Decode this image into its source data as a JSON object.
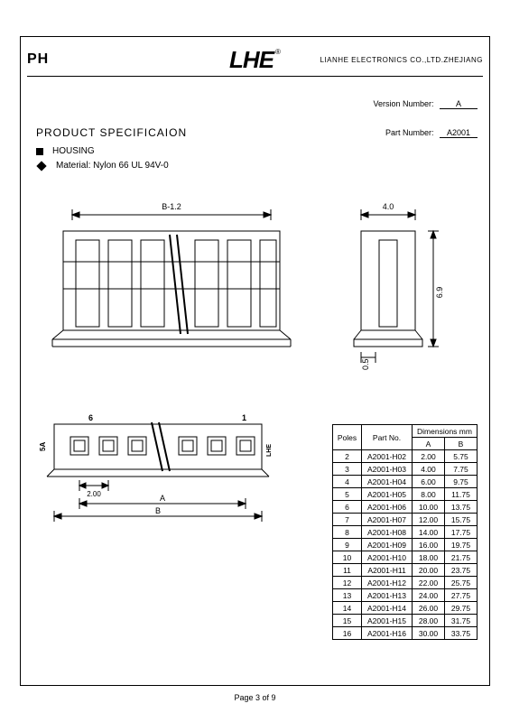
{
  "header": {
    "left": "PH",
    "logo": "LHE",
    "reg": "®",
    "company": "LIANHE ELECTRONICS CO.,LTD.ZHEJIANG"
  },
  "meta": {
    "version_label": "Version Number:",
    "version_value": "A",
    "part_label": "Part Number:",
    "part_value": "A2001"
  },
  "title": "PRODUCT SPECIFICAION",
  "spec": {
    "housing": "HOUSING",
    "material": "Material: Nylon 66 UL 94V-0"
  },
  "dimensions": {
    "front_width": "B-1.2",
    "side_width": "4.0",
    "side_height": "6.9",
    "side_offset": "0.5",
    "pitch": "2.00",
    "dim_a": "A",
    "dim_b": "B",
    "pin6": "6",
    "pin1": "1",
    "mark_5a": "5A",
    "mark_lhe": "LHE"
  },
  "table": {
    "headers": {
      "poles": "Poles",
      "partno": "Part No.",
      "dimensions": "Dimensions mm",
      "a": "A",
      "b": "B"
    },
    "rows": [
      {
        "poles": "2",
        "part": "A2001-H02",
        "a": "2.00",
        "b": "5.75"
      },
      {
        "poles": "3",
        "part": "A2001-H03",
        "a": "4.00",
        "b": "7.75"
      },
      {
        "poles": "4",
        "part": "A2001-H04",
        "a": "6.00",
        "b": "9.75"
      },
      {
        "poles": "5",
        "part": "A2001-H05",
        "a": "8.00",
        "b": "11.75"
      },
      {
        "poles": "6",
        "part": "A2001-H06",
        "a": "10.00",
        "b": "13.75"
      },
      {
        "poles": "7",
        "part": "A2001-H07",
        "a": "12.00",
        "b": "15.75"
      },
      {
        "poles": "8",
        "part": "A2001-H08",
        "a": "14.00",
        "b": "17.75"
      },
      {
        "poles": "9",
        "part": "A2001-H09",
        "a": "16.00",
        "b": "19.75"
      },
      {
        "poles": "10",
        "part": "A2001-H10",
        "a": "18.00",
        "b": "21.75"
      },
      {
        "poles": "11",
        "part": "A2001-H11",
        "a": "20.00",
        "b": "23.75"
      },
      {
        "poles": "12",
        "part": "A2001-H12",
        "a": "22.00",
        "b": "25.75"
      },
      {
        "poles": "13",
        "part": "A2001-H13",
        "a": "24.00",
        "b": "27.75"
      },
      {
        "poles": "14",
        "part": "A2001-H14",
        "a": "26.00",
        "b": "29.75"
      },
      {
        "poles": "15",
        "part": "A2001-H15",
        "a": "28.00",
        "b": "31.75"
      },
      {
        "poles": "16",
        "part": "A2001-H16",
        "a": "30.00",
        "b": "33.75"
      }
    ]
  },
  "footer": "Page 3 of 9",
  "style": {
    "stroke": "#000000",
    "fill_light": "#ffffff",
    "background": "#ffffff",
    "font_small": 9,
    "font_table": 8.5
  }
}
